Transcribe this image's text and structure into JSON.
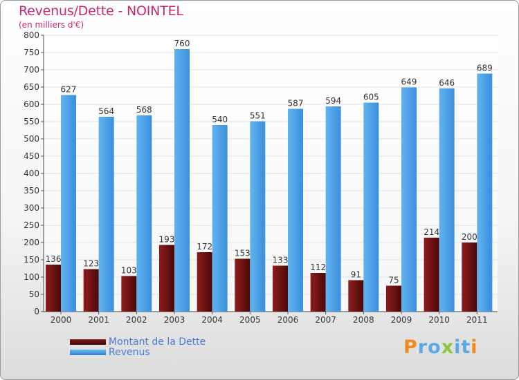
{
  "chart_data": {
    "type": "bar",
    "title": "Revenus/Dette - NOINTEL",
    "subtitle": "(en milliers d'€)",
    "categories": [
      "2000",
      "2001",
      "2002",
      "2003",
      "2004",
      "2005",
      "2006",
      "2007",
      "2008",
      "2009",
      "2010",
      "2011"
    ],
    "series": [
      {
        "name": "Montant de la Dette",
        "color": "#7a1414",
        "values": [
          136,
          123,
          103,
          193,
          172,
          153,
          133,
          112,
          91,
          75,
          214,
          200
        ]
      },
      {
        "name": "Revenus",
        "color": "#4da2e8",
        "values": [
          627,
          564,
          568,
          760,
          540,
          551,
          587,
          594,
          605,
          649,
          646,
          689
        ]
      }
    ],
    "ylim": [
      0,
      800
    ],
    "yticks": [
      0,
      50,
      100,
      150,
      200,
      250,
      300,
      350,
      400,
      450,
      500,
      550,
      600,
      650,
      700,
      750,
      800
    ],
    "grid": true,
    "legend_position": "bottom-left"
  },
  "brand": {
    "name": "Proxiti",
    "letters": [
      {
        "ch": "P",
        "color": "#f08a1e"
      },
      {
        "ch": "r",
        "color": "#5aa8e8"
      },
      {
        "ch": "o",
        "color": "#5aa8e8"
      },
      {
        "ch": "x",
        "color": "#8cc63f"
      },
      {
        "ch": "i",
        "color": "#5aa8e8"
      },
      {
        "ch": "t",
        "color": "#5aa8e8"
      },
      {
        "ch": "i",
        "color": "#f08a1e"
      }
    ]
  }
}
